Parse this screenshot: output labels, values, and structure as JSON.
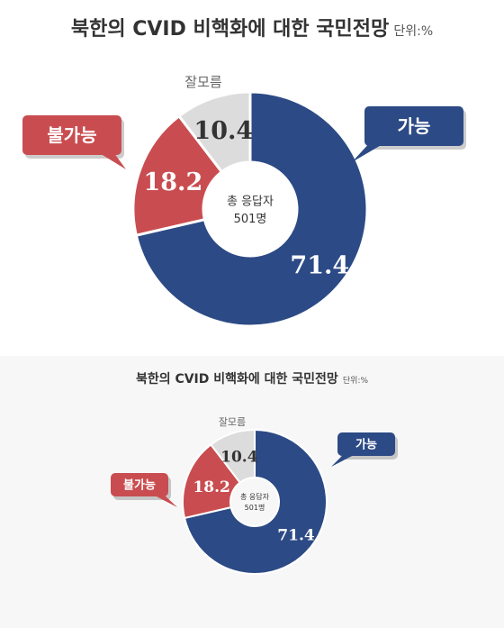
{
  "chart_data": [
    {
      "type": "pie",
      "title": "북한의 CVID 비핵화에 대한 국민전망",
      "unit_label": "단위:%",
      "center_label": [
        "총 응답자",
        "501명"
      ],
      "categories": [
        "가능",
        "불가능",
        "잘모름"
      ],
      "values": [
        71.4,
        18.2,
        10.4
      ],
      "value_labels": [
        "71.4",
        "18.2",
        "10.4"
      ],
      "colors": [
        "#2c4a85",
        "#c94d50",
        "#dcdcdc"
      ],
      "label_colors": [
        "#ffffff",
        "#ffffff",
        "#333333"
      ],
      "callouts": [
        "가능",
        "불가능"
      ],
      "callout_colors": [
        "#2c4a85",
        "#c94d50"
      ],
      "outside_label": "잘모름"
    },
    {
      "type": "pie",
      "title": "북한의 CVID 비핵화에 대한 국민전망",
      "unit_label": "단위:%",
      "center_label": [
        "총 응답자",
        "501명"
      ],
      "categories": [
        "가능",
        "불가능",
        "잘모름"
      ],
      "values": [
        71.4,
        18.2,
        10.4
      ],
      "value_labels": [
        "71.4",
        "18.2",
        "10.4"
      ],
      "colors": [
        "#2c4a85",
        "#c94d50",
        "#dcdcdc"
      ],
      "label_colors": [
        "#ffffff",
        "#ffffff",
        "#333333"
      ],
      "callouts": [
        "가능",
        "불가능"
      ],
      "callout_colors": [
        "#2c4a85",
        "#c94d50"
      ],
      "outside_label": "잘모름"
    }
  ]
}
